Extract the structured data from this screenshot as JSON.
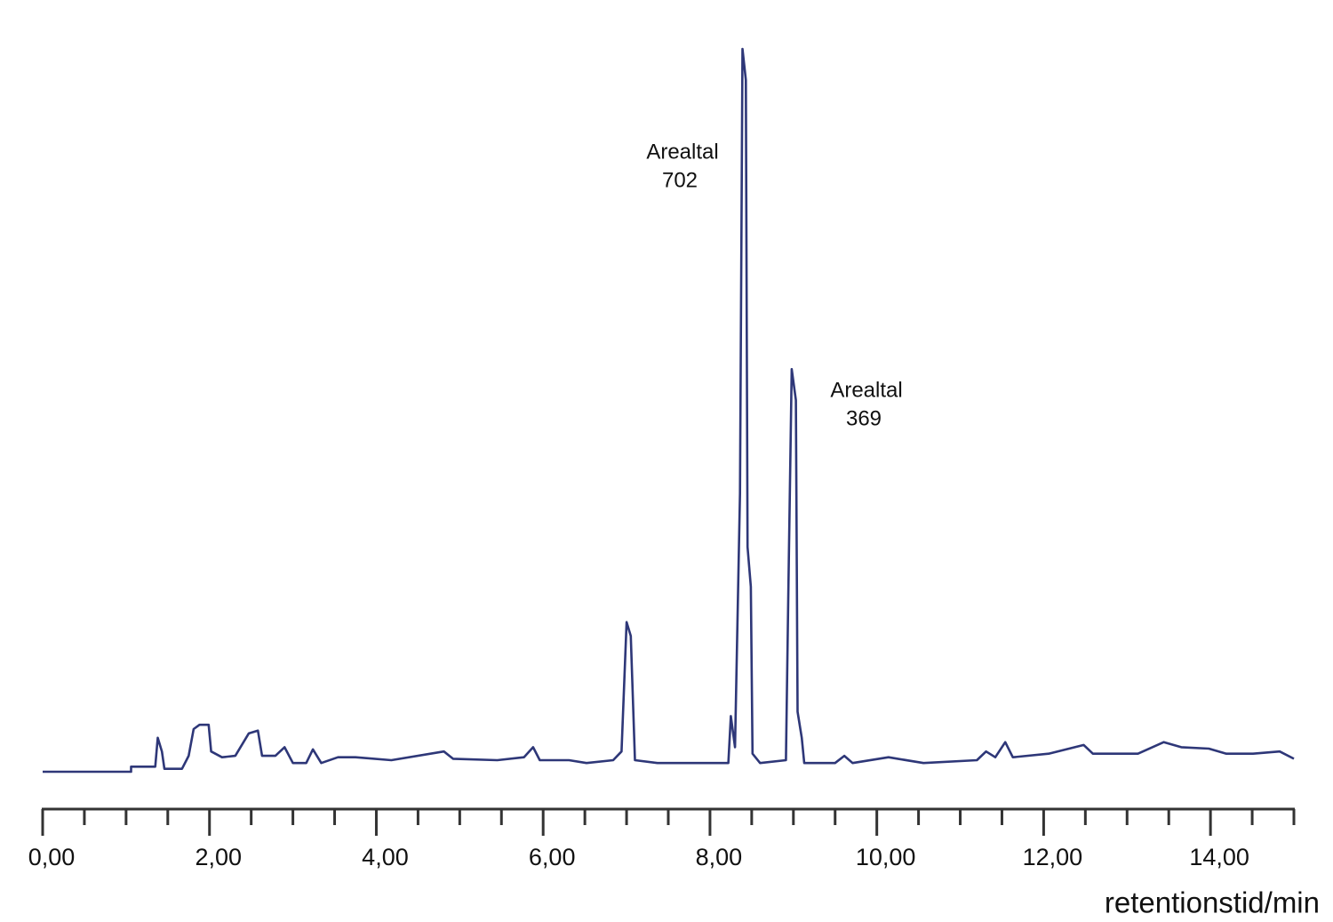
{
  "chart_data": {
    "type": "line",
    "xlabel": "retentionstid/min",
    "color": "#2e3778",
    "xlim": [
      0,
      15
    ],
    "ylim": [
      0,
      100
    ],
    "xticks": [
      {
        "value": 0,
        "label": "0,00"
      },
      {
        "value": 2,
        "label": "2,00"
      },
      {
        "value": 4,
        "label": "4,00"
      },
      {
        "value": 6,
        "label": "6,00"
      },
      {
        "value": 8,
        "label": "8,00"
      },
      {
        "value": 10,
        "label": "10,00"
      },
      {
        "value": 12,
        "label": "12,00"
      },
      {
        "value": 14,
        "label": "14,00"
      }
    ],
    "minor_xticks": [
      0.5,
      1,
      1.5,
      2.5,
      3,
      3.5,
      4.5,
      5,
      5.5,
      6.5,
      7,
      7.5,
      8.5,
      9,
      9.5,
      10.5,
      11,
      11.5,
      12.5,
      13,
      13.5,
      14.5,
      15
    ],
    "annotations": [
      {
        "lines": [
          "Arealtal",
          "702"
        ]
      },
      {
        "lines": [
          "Arealtal",
          "369"
        ]
      }
    ],
    "x": [
      0,
      1.06,
      1.06,
      1.35,
      1.38,
      1.43,
      1.46,
      1.67,
      1.75,
      1.81,
      1.88,
      1.99,
      2.02,
      2.15,
      2.31,
      2.47,
      2.58,
      2.63,
      2.79,
      2.9,
      3.0,
      3.16,
      3.24,
      3.34,
      3.54,
      3.75,
      4.18,
      4.81,
      4.92,
      5.45,
      5.77,
      5.88,
      5.96,
      6.31,
      6.52,
      6.84,
      6.94,
      7.0,
      7.05,
      7.1,
      7.37,
      7.81,
      8.22,
      8.25,
      8.3,
      8.36,
      8.39,
      8.43,
      8.45,
      8.49,
      8.51,
      8.6,
      8.91,
      8.94,
      8.98,
      9.03,
      9.05,
      9.1,
      9.13,
      9.5,
      9.61,
      9.71,
      10.14,
      10.56,
      11.2,
      11.31,
      11.42,
      11.54,
      11.63,
      12.06,
      12.48,
      12.59,
      13.13,
      13.44,
      13.65,
      13.98,
      14.19,
      14.51,
      14.83,
      15.0
    ],
    "values": [
      0,
      0,
      0.7,
      0.7,
      4.7,
      2.8,
      0.4,
      0.4,
      2.2,
      5.9,
      6.5,
      6.5,
      2.8,
      2.0,
      2.2,
      5.3,
      5.7,
      2.2,
      2.2,
      3.4,
      1.2,
      1.2,
      3.1,
      1.2,
      2.0,
      2.0,
      1.6,
      2.8,
      1.8,
      1.6,
      2.0,
      3.4,
      1.6,
      1.6,
      1.2,
      1.6,
      2.8,
      20.7,
      18.8,
      1.6,
      1.2,
      1.2,
      1.2,
      7.7,
      3.4,
      38.5,
      100,
      95.7,
      31.1,
      25.6,
      2.5,
      1.2,
      1.6,
      25.6,
      55.7,
      51.4,
      8.3,
      4.7,
      1.2,
      1.2,
      2.2,
      1.2,
      2.0,
      1.2,
      1.6,
      2.8,
      2.0,
      4.1,
      2.0,
      2.5,
      3.7,
      2.5,
      2.5,
      4.1,
      3.4,
      3.2,
      2.5,
      2.5,
      2.8,
      1.8
    ]
  }
}
